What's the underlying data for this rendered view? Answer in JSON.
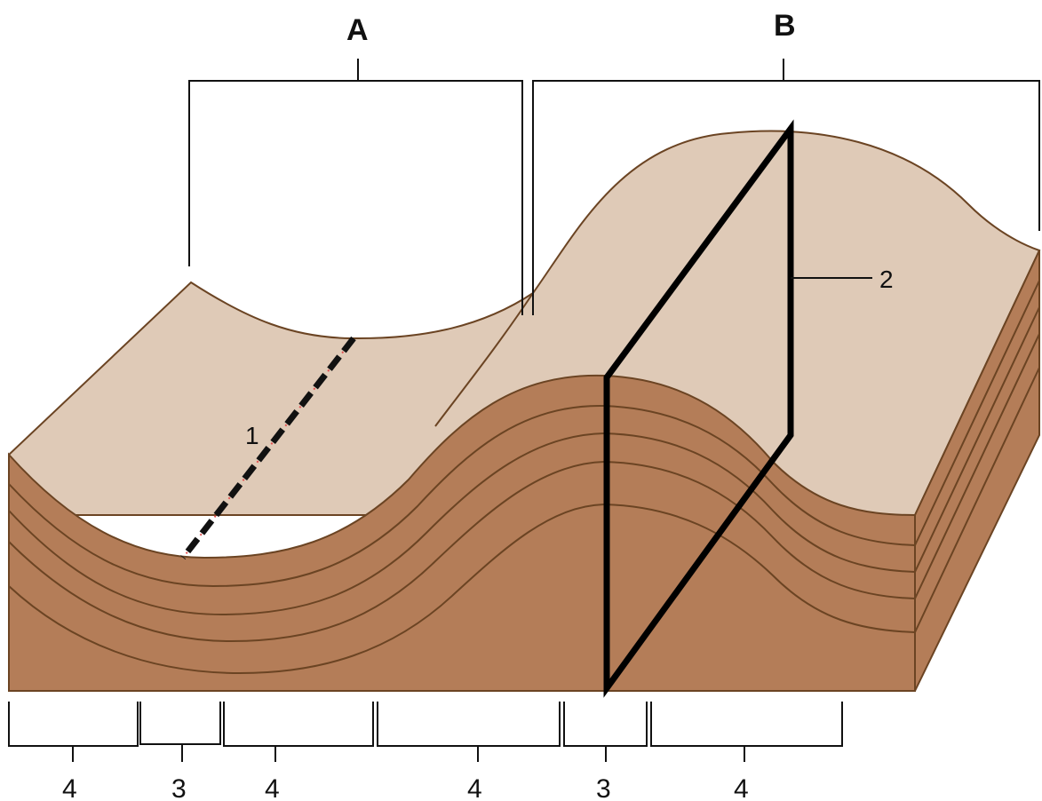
{
  "labels": {
    "region_a": "A",
    "region_b": "B",
    "marker_1": "1",
    "marker_2": "2"
  },
  "bottom_brackets": [
    "4",
    "3",
    "4",
    "4",
    "3",
    "4"
  ],
  "colors": {
    "top_surface": "#dfcab7",
    "strata_front": "#b47d58",
    "side_face": "#b47d58",
    "outline": "#6b4423",
    "axis_line": "#000000",
    "dash_highlight": "#e05050"
  }
}
